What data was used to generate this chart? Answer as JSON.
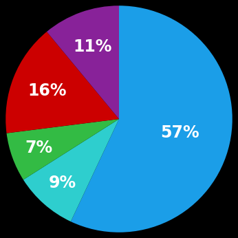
{
  "slices": [
    57,
    9,
    7,
    16,
    11
  ],
  "colors": [
    "#1B9EE8",
    "#2ECECE",
    "#33BB44",
    "#CC0000",
    "#882299"
  ],
  "labels": [
    "57%",
    "9%",
    "7%",
    "16%",
    "11%"
  ],
  "background_color": "#000000",
  "startangle": 90,
  "label_fontsize": 17,
  "label_color": "white"
}
